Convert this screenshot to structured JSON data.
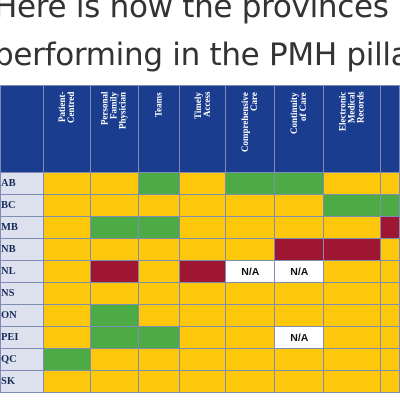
{
  "caption": {
    "line1": "Here is how the provinces are",
    "line2": "performing in the PMH pillars"
  },
  "colors": {
    "header_blue": "#1b3d8f",
    "yellow": "#fdc70c",
    "green": "#4cab44",
    "red": "#9f1633"
  },
  "columns": [
    "Patient-\nCentred",
    "Personal\nFamily\nPhysician",
    "Teams",
    "Timely\nAccess",
    "Comprehensive\nCare",
    "Continuity\nof Care",
    "Electronic\nMedical\nRecords",
    ""
  ],
  "rows": [
    {
      "prov": "AB",
      "cells": [
        "Y",
        "Y",
        "G",
        "Y",
        "G",
        "G",
        "Y",
        "Y"
      ],
      "labels": [
        "",
        "",
        "",
        "",
        "",
        "",
        "",
        ""
      ]
    },
    {
      "prov": "BC",
      "cells": [
        "Y",
        "Y",
        "Y",
        "Y",
        "Y",
        "Y",
        "G",
        "G"
      ],
      "labels": [
        "",
        "",
        "",
        "",
        "",
        "",
        "",
        ""
      ]
    },
    {
      "prov": "MB",
      "cells": [
        "Y",
        "G",
        "G",
        "Y",
        "Y",
        "Y",
        "Y",
        "R"
      ],
      "labels": [
        "",
        "",
        "",
        "",
        "",
        "",
        "",
        ""
      ]
    },
    {
      "prov": "NB",
      "cells": [
        "Y",
        "Y",
        "Y",
        "Y",
        "Y",
        "R",
        "R",
        "Y"
      ],
      "labels": [
        "",
        "",
        "",
        "",
        "",
        "",
        "",
        ""
      ]
    },
    {
      "prov": "NL",
      "cells": [
        "Y",
        "R",
        "Y",
        "R",
        "NAW",
        "NAW",
        "Y",
        "Y"
      ],
      "labels": [
        "",
        "",
        "",
        "",
        "N/A",
        "N/A",
        "",
        ""
      ]
    },
    {
      "prov": "NS",
      "cells": [
        "Y",
        "Y",
        "Y",
        "Y",
        "Y",
        "Y",
        "Y",
        "Y"
      ],
      "labels": [
        "",
        "",
        "",
        "",
        "",
        "",
        "",
        ""
      ]
    },
    {
      "prov": "ON",
      "cells": [
        "Y",
        "G",
        "Y",
        "Y",
        "Y",
        "Y",
        "Y",
        "Y"
      ],
      "labels": [
        "",
        "",
        "",
        "",
        "",
        "",
        "",
        ""
      ]
    },
    {
      "prov": "PEI",
      "cells": [
        "Y",
        "G",
        "G",
        "Y",
        "Y",
        "NAW",
        "Y",
        "Y"
      ],
      "labels": [
        "",
        "",
        "",
        "",
        "",
        "N/A",
        "",
        ""
      ]
    },
    {
      "prov": "QC",
      "cells": [
        "G",
        "Y",
        "Y",
        "Y",
        "Y",
        "Y",
        "Y",
        "Y"
      ],
      "labels": [
        "",
        "",
        "",
        "",
        "",
        "",
        "",
        ""
      ]
    },
    {
      "prov": "SK",
      "cells": [
        "Y",
        "Y",
        "Y",
        "Y",
        "Y",
        "Y",
        "Y",
        "Y"
      ],
      "labels": [
        "",
        "",
        "",
        "",
        "",
        "",
        "",
        ""
      ]
    }
  ]
}
